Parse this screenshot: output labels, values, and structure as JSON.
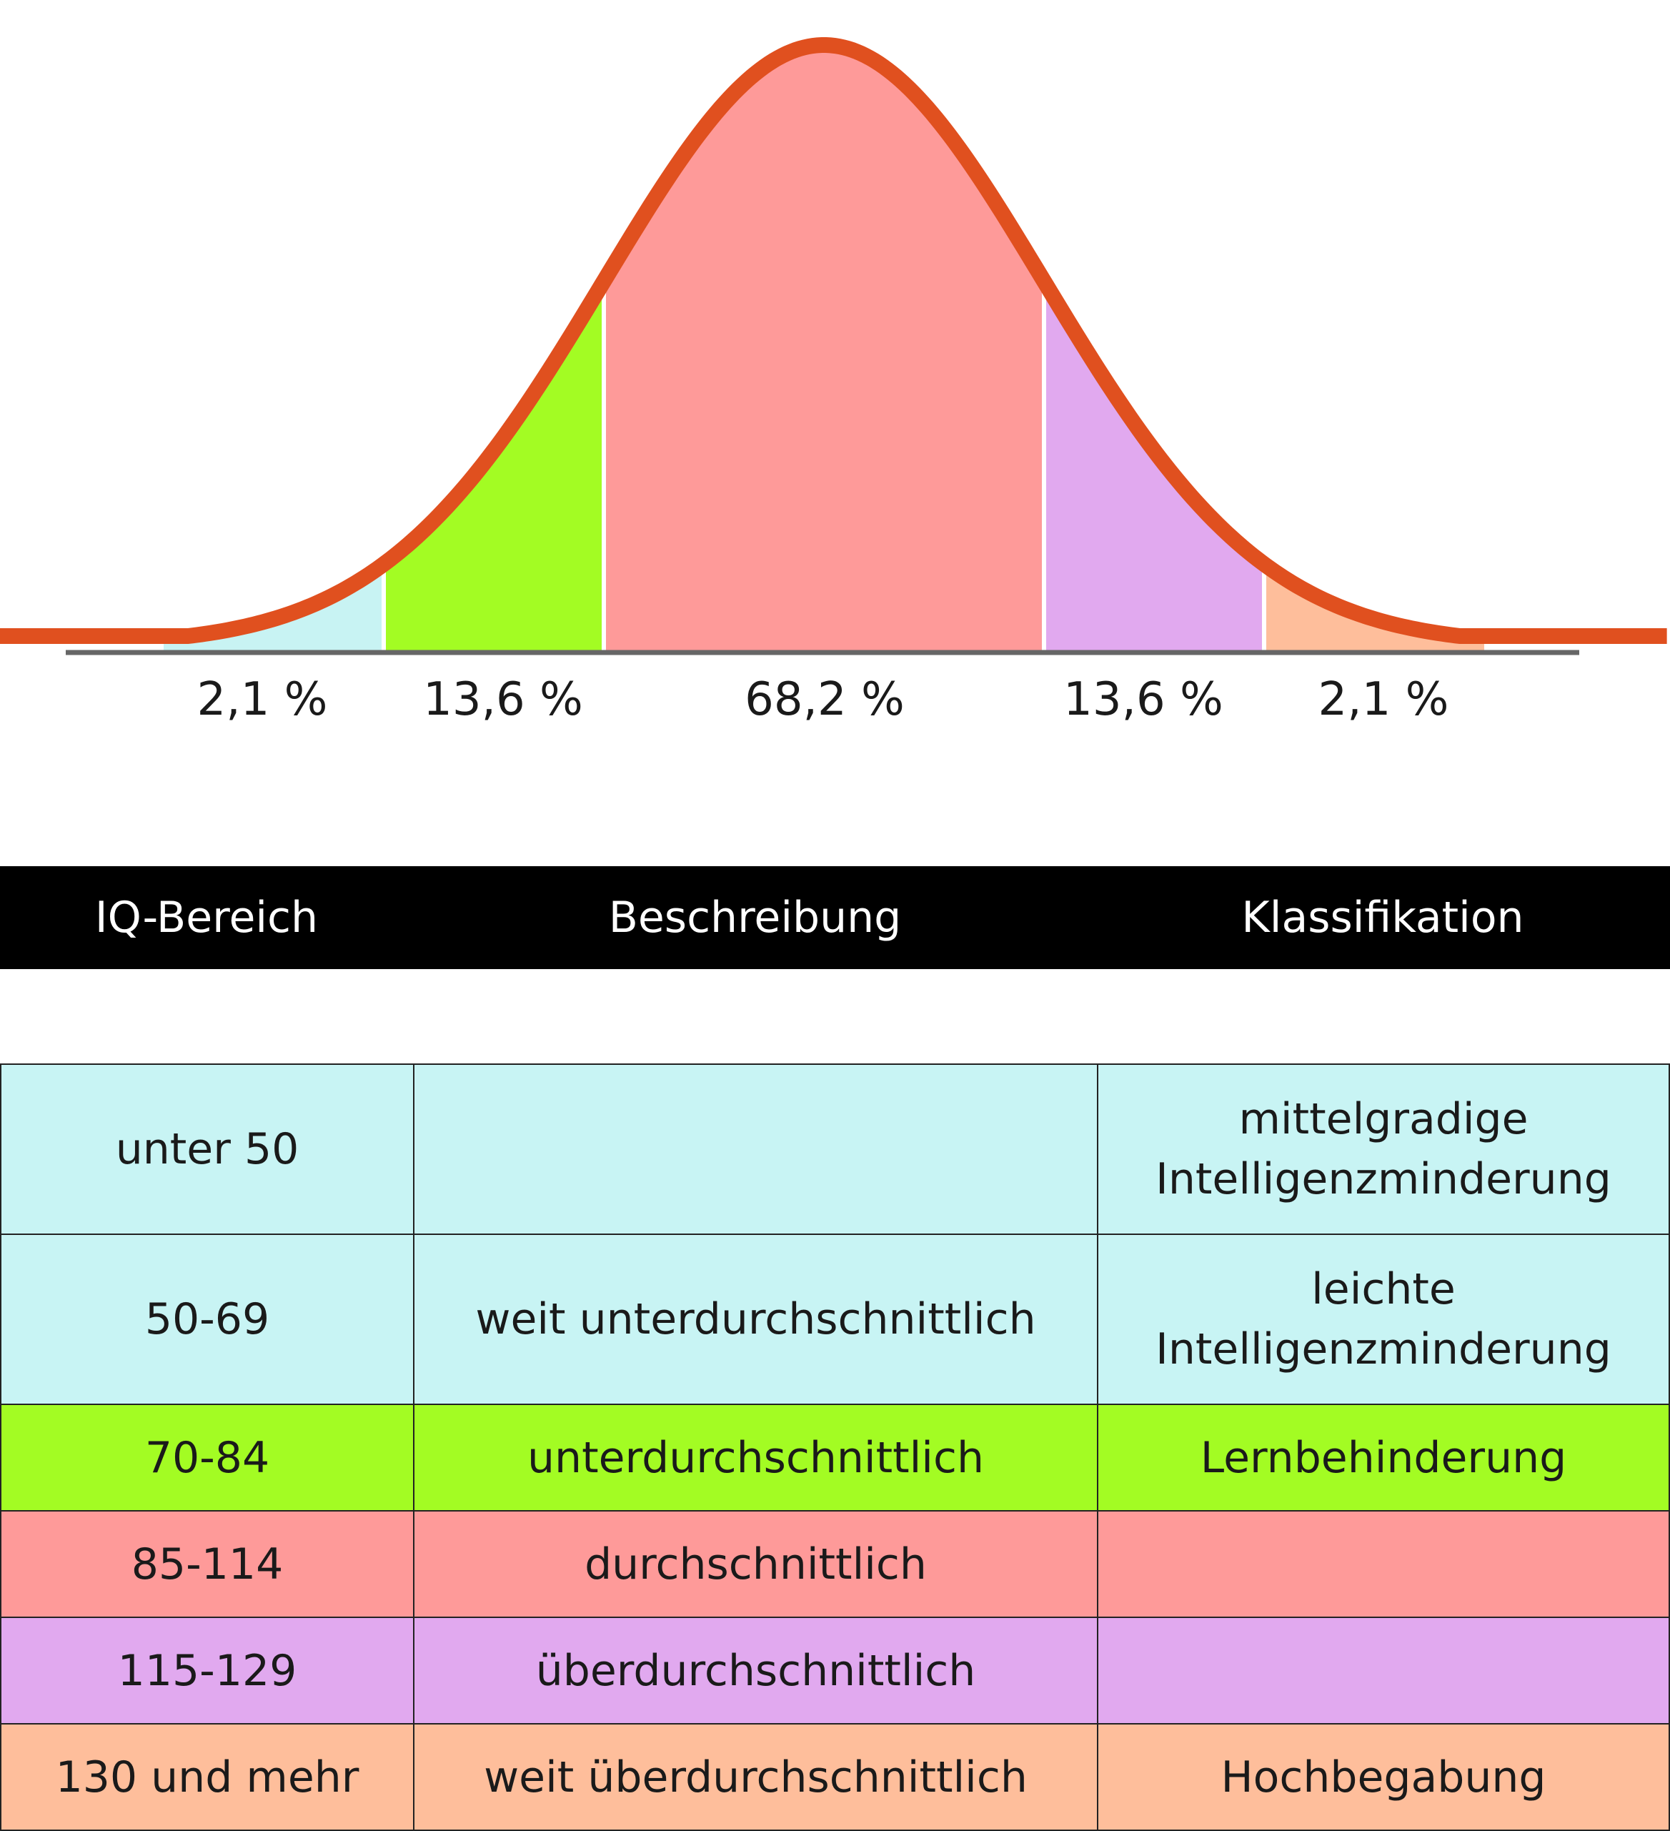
{
  "chart_data": {
    "type": "area",
    "title": "",
    "distribution": "normal",
    "mean": 100,
    "sd": 15,
    "segments": [
      {
        "label": "2,1 %",
        "value": 2.1,
        "color": "#c8f3f3",
        "from_sd": -3,
        "to_sd": -2
      },
      {
        "label": "13,6 %",
        "value": 13.6,
        "color": "#a3fc23",
        "from_sd": -2,
        "to_sd": -1
      },
      {
        "label": "68,2 %",
        "value": 68.2,
        "color": "#fe9a99",
        "from_sd": -1,
        "to_sd": 1
      },
      {
        "label": "13,6 %",
        "value": 13.6,
        "color": "#e1a9ef",
        "from_sd": 1,
        "to_sd": 2
      },
      {
        "label": "2,1 %",
        "value": 2.1,
        "color": "#febe9b",
        "from_sd": 2,
        "to_sd": 3
      }
    ],
    "curve_color": "#e0501f",
    "axis_color": "#666666"
  },
  "table": {
    "headers": [
      "IQ-Bereich",
      "Beschreibung",
      "Klassifikation"
    ],
    "rows": [
      {
        "range": "unter 50",
        "description": "",
        "class_line1": "mittelgradige",
        "class_line2": "Intelligenzminderung",
        "color": "#c8f4f4"
      },
      {
        "range": "50-69",
        "description": "weit unterdurchschnittlich",
        "class_line1": "leichte",
        "class_line2": "Intelligenzminderung",
        "color": "#c8f4f4"
      },
      {
        "range": "70-84",
        "description": "unterdurchschnittlich",
        "class_line1": "Lernbehinderung",
        "class_line2": "",
        "color": "#a3fc23"
      },
      {
        "range": "85-114",
        "description": "durchschnittlich",
        "class_line1": "",
        "class_line2": "",
        "color": "#fe9a99"
      },
      {
        "range": "115-129",
        "description": "überdurchschnittlich",
        "class_line1": "",
        "class_line2": "",
        "color": "#e1a9ef"
      },
      {
        "range": "130 und mehr",
        "description": "weit überdurchschnittlich",
        "class_line1": "Hochbegabung",
        "class_line2": "",
        "color": "#febe9b"
      }
    ]
  }
}
